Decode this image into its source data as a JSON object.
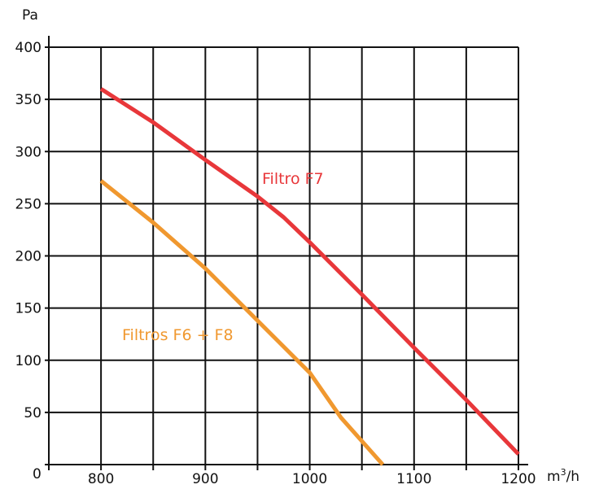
{
  "chart_data": {
    "type": "line",
    "title": "",
    "ylabel": "Pa",
    "xlabel_base": "m",
    "xlabel_sup": "3",
    "xlabel_tail": "/h",
    "origin_label": "0",
    "xlim": [
      750,
      1200
    ],
    "ylim": [
      0,
      400
    ],
    "x_ticks": [
      800,
      900,
      1000,
      1100,
      1200
    ],
    "y_ticks": [
      50,
      100,
      150,
      200,
      250,
      300,
      350,
      400
    ],
    "grid": true,
    "series": [
      {
        "name": "Filtro F7",
        "color": "#e8373a",
        "points": [
          [
            800,
            360
          ],
          [
            850,
            328
          ],
          [
            900,
            292
          ],
          [
            950,
            257
          ],
          [
            975,
            237
          ],
          [
            1000,
            213
          ],
          [
            1050,
            163
          ],
          [
            1100,
            112
          ],
          [
            1150,
            62
          ],
          [
            1200,
            10
          ]
        ]
      },
      {
        "name": "Filtros F6 + F8",
        "color": "#f0982f",
        "points": [
          [
            800,
            272
          ],
          [
            850,
            232
          ],
          [
            900,
            188
          ],
          [
            950,
            138
          ],
          [
            1000,
            88
          ],
          [
            1030,
            45
          ],
          [
            1070,
            0
          ]
        ]
      }
    ]
  }
}
